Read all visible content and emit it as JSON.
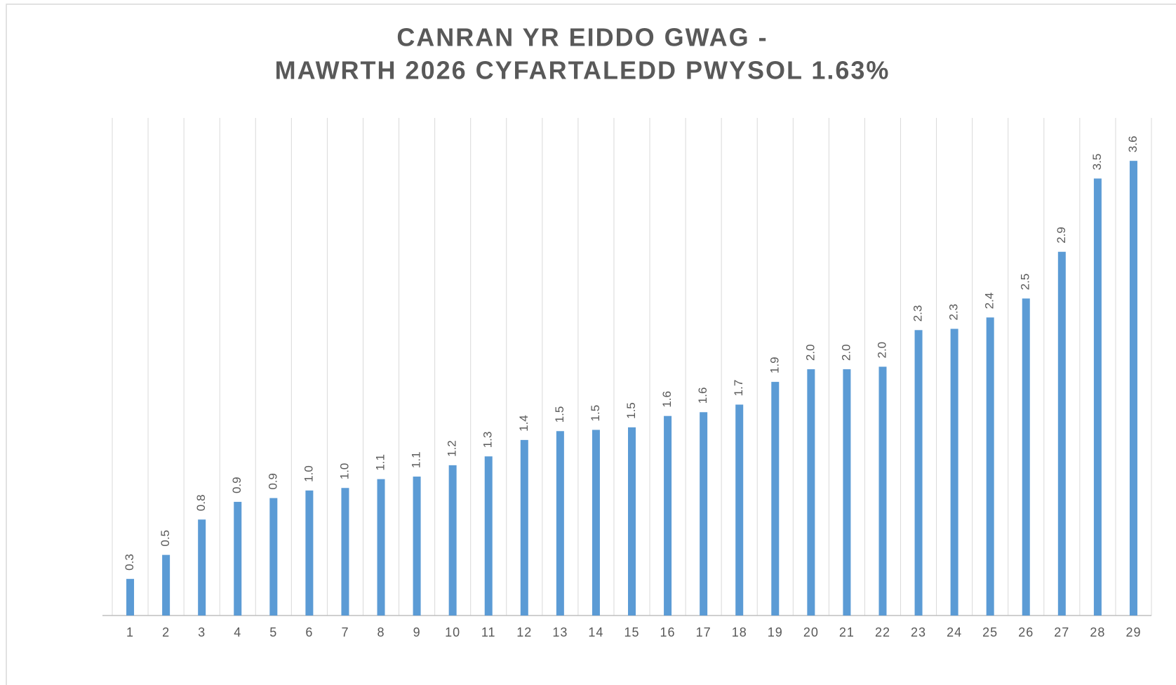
{
  "chart_data": {
    "type": "bar",
    "title": [
      "CANRAN YR EIDDO GWAG -",
      "MAWRTH 2026 CYFARTALEDD PWYSOL 1.63%"
    ],
    "categories": [
      "1",
      "2",
      "3",
      "4",
      "5",
      "6",
      "7",
      "8",
      "9",
      "10",
      "11",
      "12",
      "13",
      "14",
      "15",
      "16",
      "17",
      "18",
      "19",
      "20",
      "21",
      "22",
      "23",
      "24",
      "25",
      "26",
      "27",
      "28",
      "29"
    ],
    "values": [
      0.29,
      0.48,
      0.76,
      0.9,
      0.93,
      0.99,
      1.01,
      1.08,
      1.1,
      1.19,
      1.26,
      1.39,
      1.46,
      1.47,
      1.49,
      1.58,
      1.61,
      1.67,
      1.85,
      1.95,
      1.95,
      1.97,
      2.26,
      2.27,
      2.36,
      2.51,
      2.88,
      3.46,
      3.6
    ],
    "value_labels": [
      "0.3",
      "0.5",
      "0.8",
      "0.9",
      "0.9",
      "1.0",
      "1.0",
      "1.1",
      "1.1",
      "1.2",
      "1.3",
      "1.4",
      "1.5",
      "1.5",
      "1.5",
      "1.6",
      "1.6",
      "1.7",
      "1.9",
      "2.0",
      "2.0",
      "2.0",
      "2.3",
      "2.3",
      "2.4",
      "2.5",
      "2.9",
      "3.5",
      "3.6"
    ],
    "color": "#5b9bd5",
    "ylim": [
      0,
      3.94
    ]
  }
}
